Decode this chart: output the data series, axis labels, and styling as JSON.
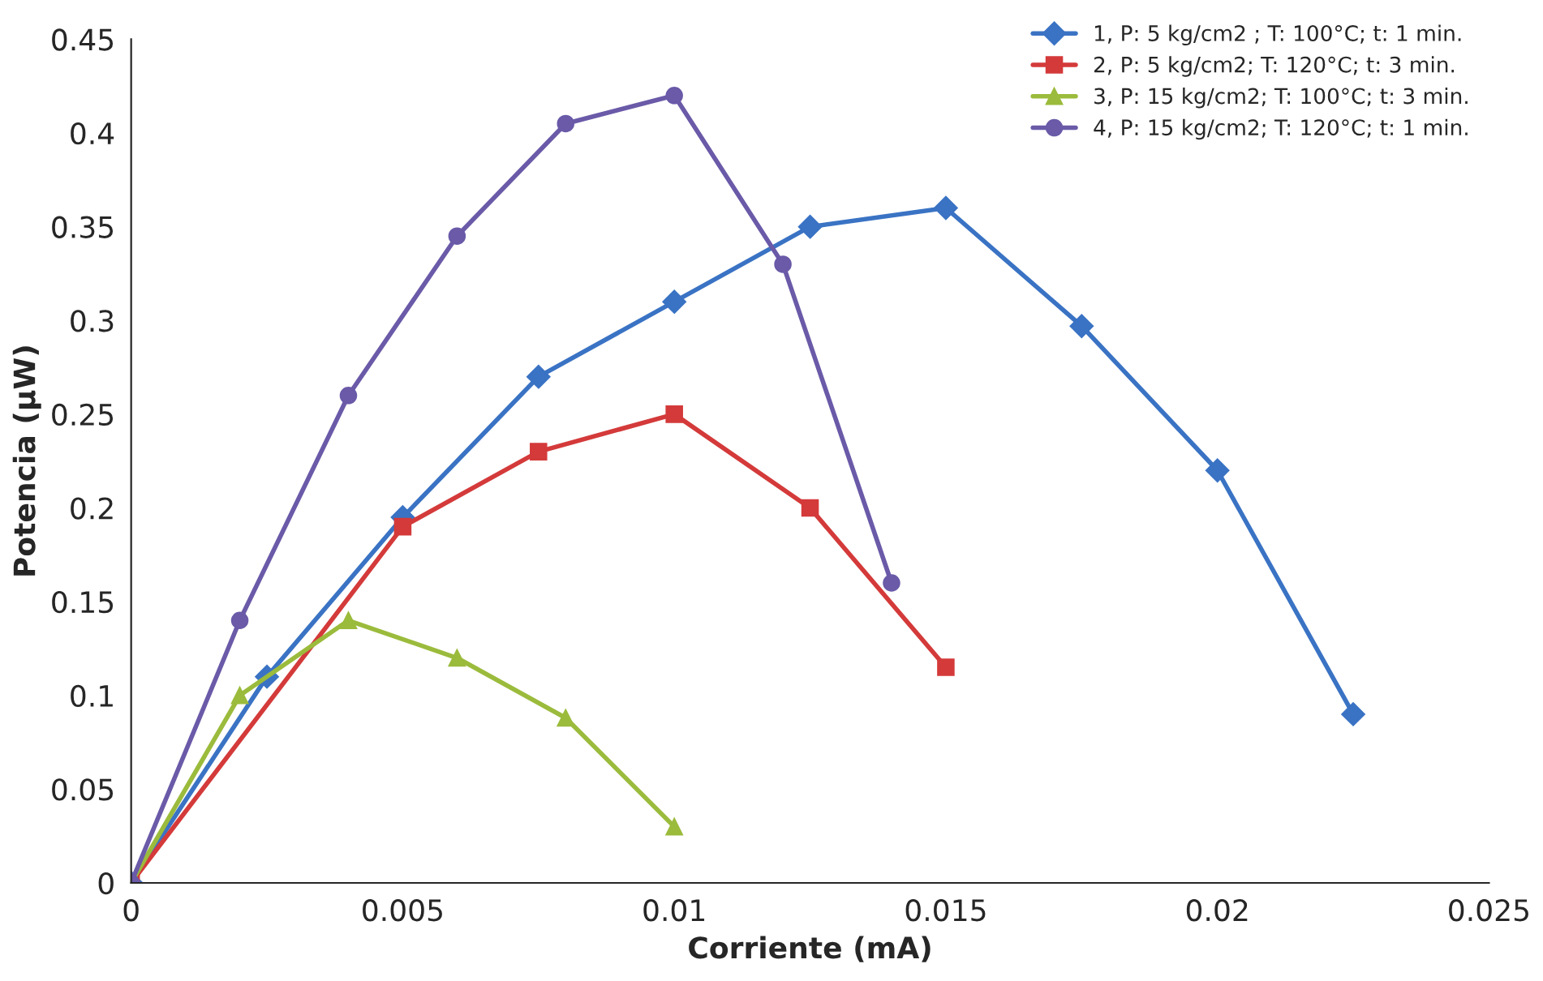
{
  "chart_data": {
    "type": "line",
    "xlabel": "Corriente (mA)",
    "ylabel": "Potencia (µW)",
    "xlim": [
      0,
      0.025
    ],
    "xticks": [
      0,
      0.005,
      0.01,
      0.015,
      0.02,
      0.025
    ],
    "ylim": [
      0,
      0.45
    ],
    "yticks": [
      0,
      0.05,
      0.1,
      0.15,
      0.2,
      0.25,
      0.3,
      0.35,
      0.4,
      0.45
    ],
    "grid": false,
    "legend": "top right",
    "line_style": "solid",
    "series": [
      {
        "name": "1, P: 5 kg/cm2 ; T: 100°C; t: 1 min.",
        "color": "#3a73c4",
        "marker": "diamond",
        "x": [
          0,
          0.0025,
          0.005,
          0.0075,
          0.01,
          0.0125,
          0.015,
          0.0175,
          0.02,
          0.0225
        ],
        "values": [
          0,
          0.11,
          0.195,
          0.27,
          0.31,
          0.35,
          0.36,
          0.297,
          0.22,
          0.09
        ]
      },
      {
        "name": "2, P: 5 kg/cm2; T: 120°C; t: 3 min.",
        "color": "#d43a3a",
        "marker": "square",
        "x": [
          0,
          0.005,
          0.0075,
          0.01,
          0.0125,
          0.015
        ],
        "values": [
          0,
          0.19,
          0.23,
          0.25,
          0.2,
          0.115
        ]
      },
      {
        "name": "3, P: 15 kg/cm2; T: 100°C; t: 3 min.",
        "color": "#9bbb3c",
        "marker": "triangle",
        "x": [
          0,
          0.002,
          0.004,
          0.006,
          0.008,
          0.01
        ],
        "values": [
          0,
          0.1,
          0.14,
          0.12,
          0.088,
          0.03
        ]
      },
      {
        "name": "4, P: 15 kg/cm2; T: 120°C; t: 1 min.",
        "color": "#6a5aa8",
        "marker": "circle",
        "x": [
          0,
          0.002,
          0.004,
          0.006,
          0.008,
          0.01,
          0.012,
          0.014
        ],
        "values": [
          0,
          0.14,
          0.26,
          0.345,
          0.405,
          0.42,
          0.33,
          0.16
        ]
      }
    ]
  }
}
